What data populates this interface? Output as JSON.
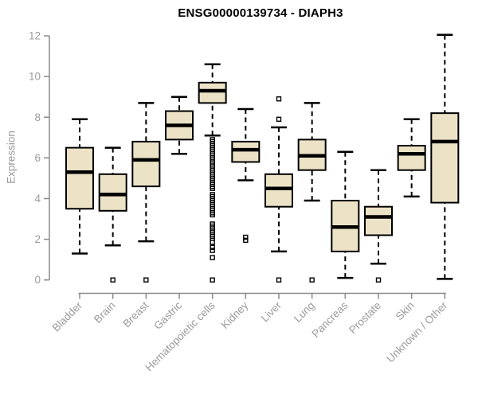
{
  "chart_data": {
    "type": "boxplot",
    "title": "ENSG00000139734 - DIAPH3",
    "xlabel": "",
    "ylabel": "Expression",
    "ylim": [
      0,
      12
    ],
    "yticks": [
      0,
      2,
      4,
      6,
      8,
      10,
      12
    ],
    "grid": false,
    "legend": "none",
    "box_fill": "#ece3c7",
    "box_stroke": "#000000",
    "axis_color": "#8a8a8a",
    "label_color": "#9b9b9b",
    "title_color": "#000000",
    "categories": [
      "Bladder",
      "Brain",
      "Breast",
      "Gastric",
      "Hematopoietic cells",
      "Kidney",
      "Liver",
      "Lung",
      "Pancreas",
      "Prostate",
      "Skin",
      "Unknown / Other"
    ],
    "series": [
      {
        "category": "Bladder",
        "whisker_low": 1.3,
        "q1": 3.5,
        "median": 5.3,
        "q3": 6.5,
        "whisker_high": 7.9,
        "outliers": []
      },
      {
        "category": "Brain",
        "whisker_low": 1.7,
        "q1": 3.4,
        "median": 4.2,
        "q3": 5.2,
        "whisker_high": 6.5,
        "outliers": [
          0
        ]
      },
      {
        "category": "Breast",
        "whisker_low": 1.9,
        "q1": 4.6,
        "median": 5.9,
        "q3": 6.8,
        "whisker_high": 8.7,
        "outliers": [
          0
        ]
      },
      {
        "category": "Gastric",
        "whisker_low": 6.2,
        "q1": 6.9,
        "median": 7.6,
        "q3": 8.3,
        "whisker_high": 9.0,
        "outliers": []
      },
      {
        "category": "Hematopoietic cells",
        "whisker_low": 7.1,
        "q1": 8.7,
        "median": 9.3,
        "q3": 9.7,
        "whisker_high": 10.6,
        "outliers": [
          6.9,
          6.8,
          6.7,
          6.6,
          6.5,
          6.4,
          6.3,
          6.2,
          6.1,
          6.0,
          5.9,
          5.8,
          5.7,
          5.6,
          5.5,
          5.4,
          5.3,
          5.2,
          5.1,
          5.0,
          4.9,
          4.8,
          4.7,
          4.6,
          4.5,
          4.2,
          4.1,
          4.0,
          3.9,
          3.8,
          3.7,
          3.6,
          3.5,
          3.4,
          3.3,
          3.2,
          2.75,
          2.65,
          2.55,
          2.45,
          2.35,
          2.25,
          2.15,
          2.05,
          1.85,
          1.6,
          1.45,
          1.1,
          0
        ]
      },
      {
        "category": "Kidney",
        "whisker_low": 4.9,
        "q1": 5.8,
        "median": 6.4,
        "q3": 6.8,
        "whisker_high": 8.4,
        "outliers": [
          2.1,
          1.95
        ]
      },
      {
        "category": "Liver",
        "whisker_low": 1.4,
        "q1": 3.6,
        "median": 4.5,
        "q3": 5.2,
        "whisker_high": 7.5,
        "outliers": [
          8.9,
          7.9,
          0
        ]
      },
      {
        "category": "Lung",
        "whisker_low": 3.9,
        "q1": 5.4,
        "median": 6.1,
        "q3": 6.9,
        "whisker_high": 8.7,
        "outliers": [
          0
        ]
      },
      {
        "category": "Pancreas",
        "whisker_low": 0.1,
        "q1": 1.4,
        "median": 2.6,
        "q3": 3.9,
        "whisker_high": 6.3,
        "outliers": []
      },
      {
        "category": "Prostate",
        "whisker_low": 0.8,
        "q1": 2.2,
        "median": 3.1,
        "q3": 3.6,
        "whisker_high": 5.4,
        "outliers": [
          0
        ]
      },
      {
        "category": "Skin",
        "whisker_low": 4.1,
        "q1": 5.4,
        "median": 6.2,
        "q3": 6.6,
        "whisker_high": 7.9,
        "outliers": []
      },
      {
        "category": "Unknown / Other",
        "whisker_low": 0.05,
        "q1": 3.8,
        "median": 6.8,
        "q3": 8.2,
        "whisker_high": 12.05,
        "outliers": []
      }
    ]
  }
}
